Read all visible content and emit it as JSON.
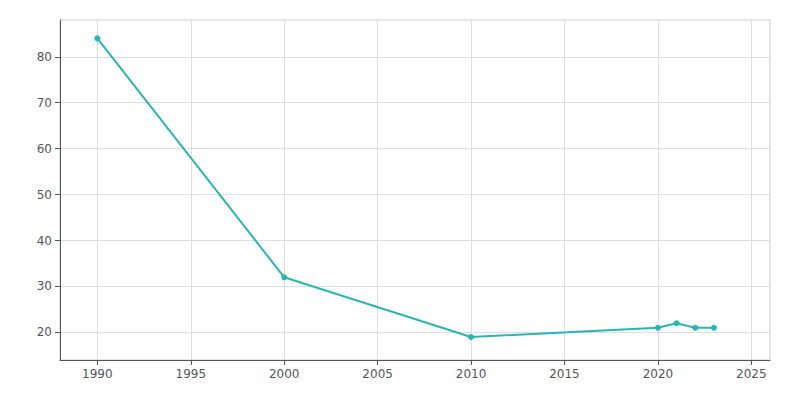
{
  "chart_data": {
    "type": "line",
    "x": [
      1990,
      2000,
      2010,
      2020,
      2021,
      2022,
      2023
    ],
    "values": [
      84,
      32,
      19,
      21,
      22,
      21,
      21
    ],
    "color": "#2ab5b5",
    "marker": "circle",
    "xlim": [
      1988,
      2026
    ],
    "ylim": [
      14,
      88
    ],
    "xticks": [
      1990,
      1995,
      2000,
      2005,
      2010,
      2015,
      2020,
      2025
    ],
    "yticks": [
      20,
      30,
      40,
      50,
      60,
      70,
      80
    ],
    "grid": true
  }
}
